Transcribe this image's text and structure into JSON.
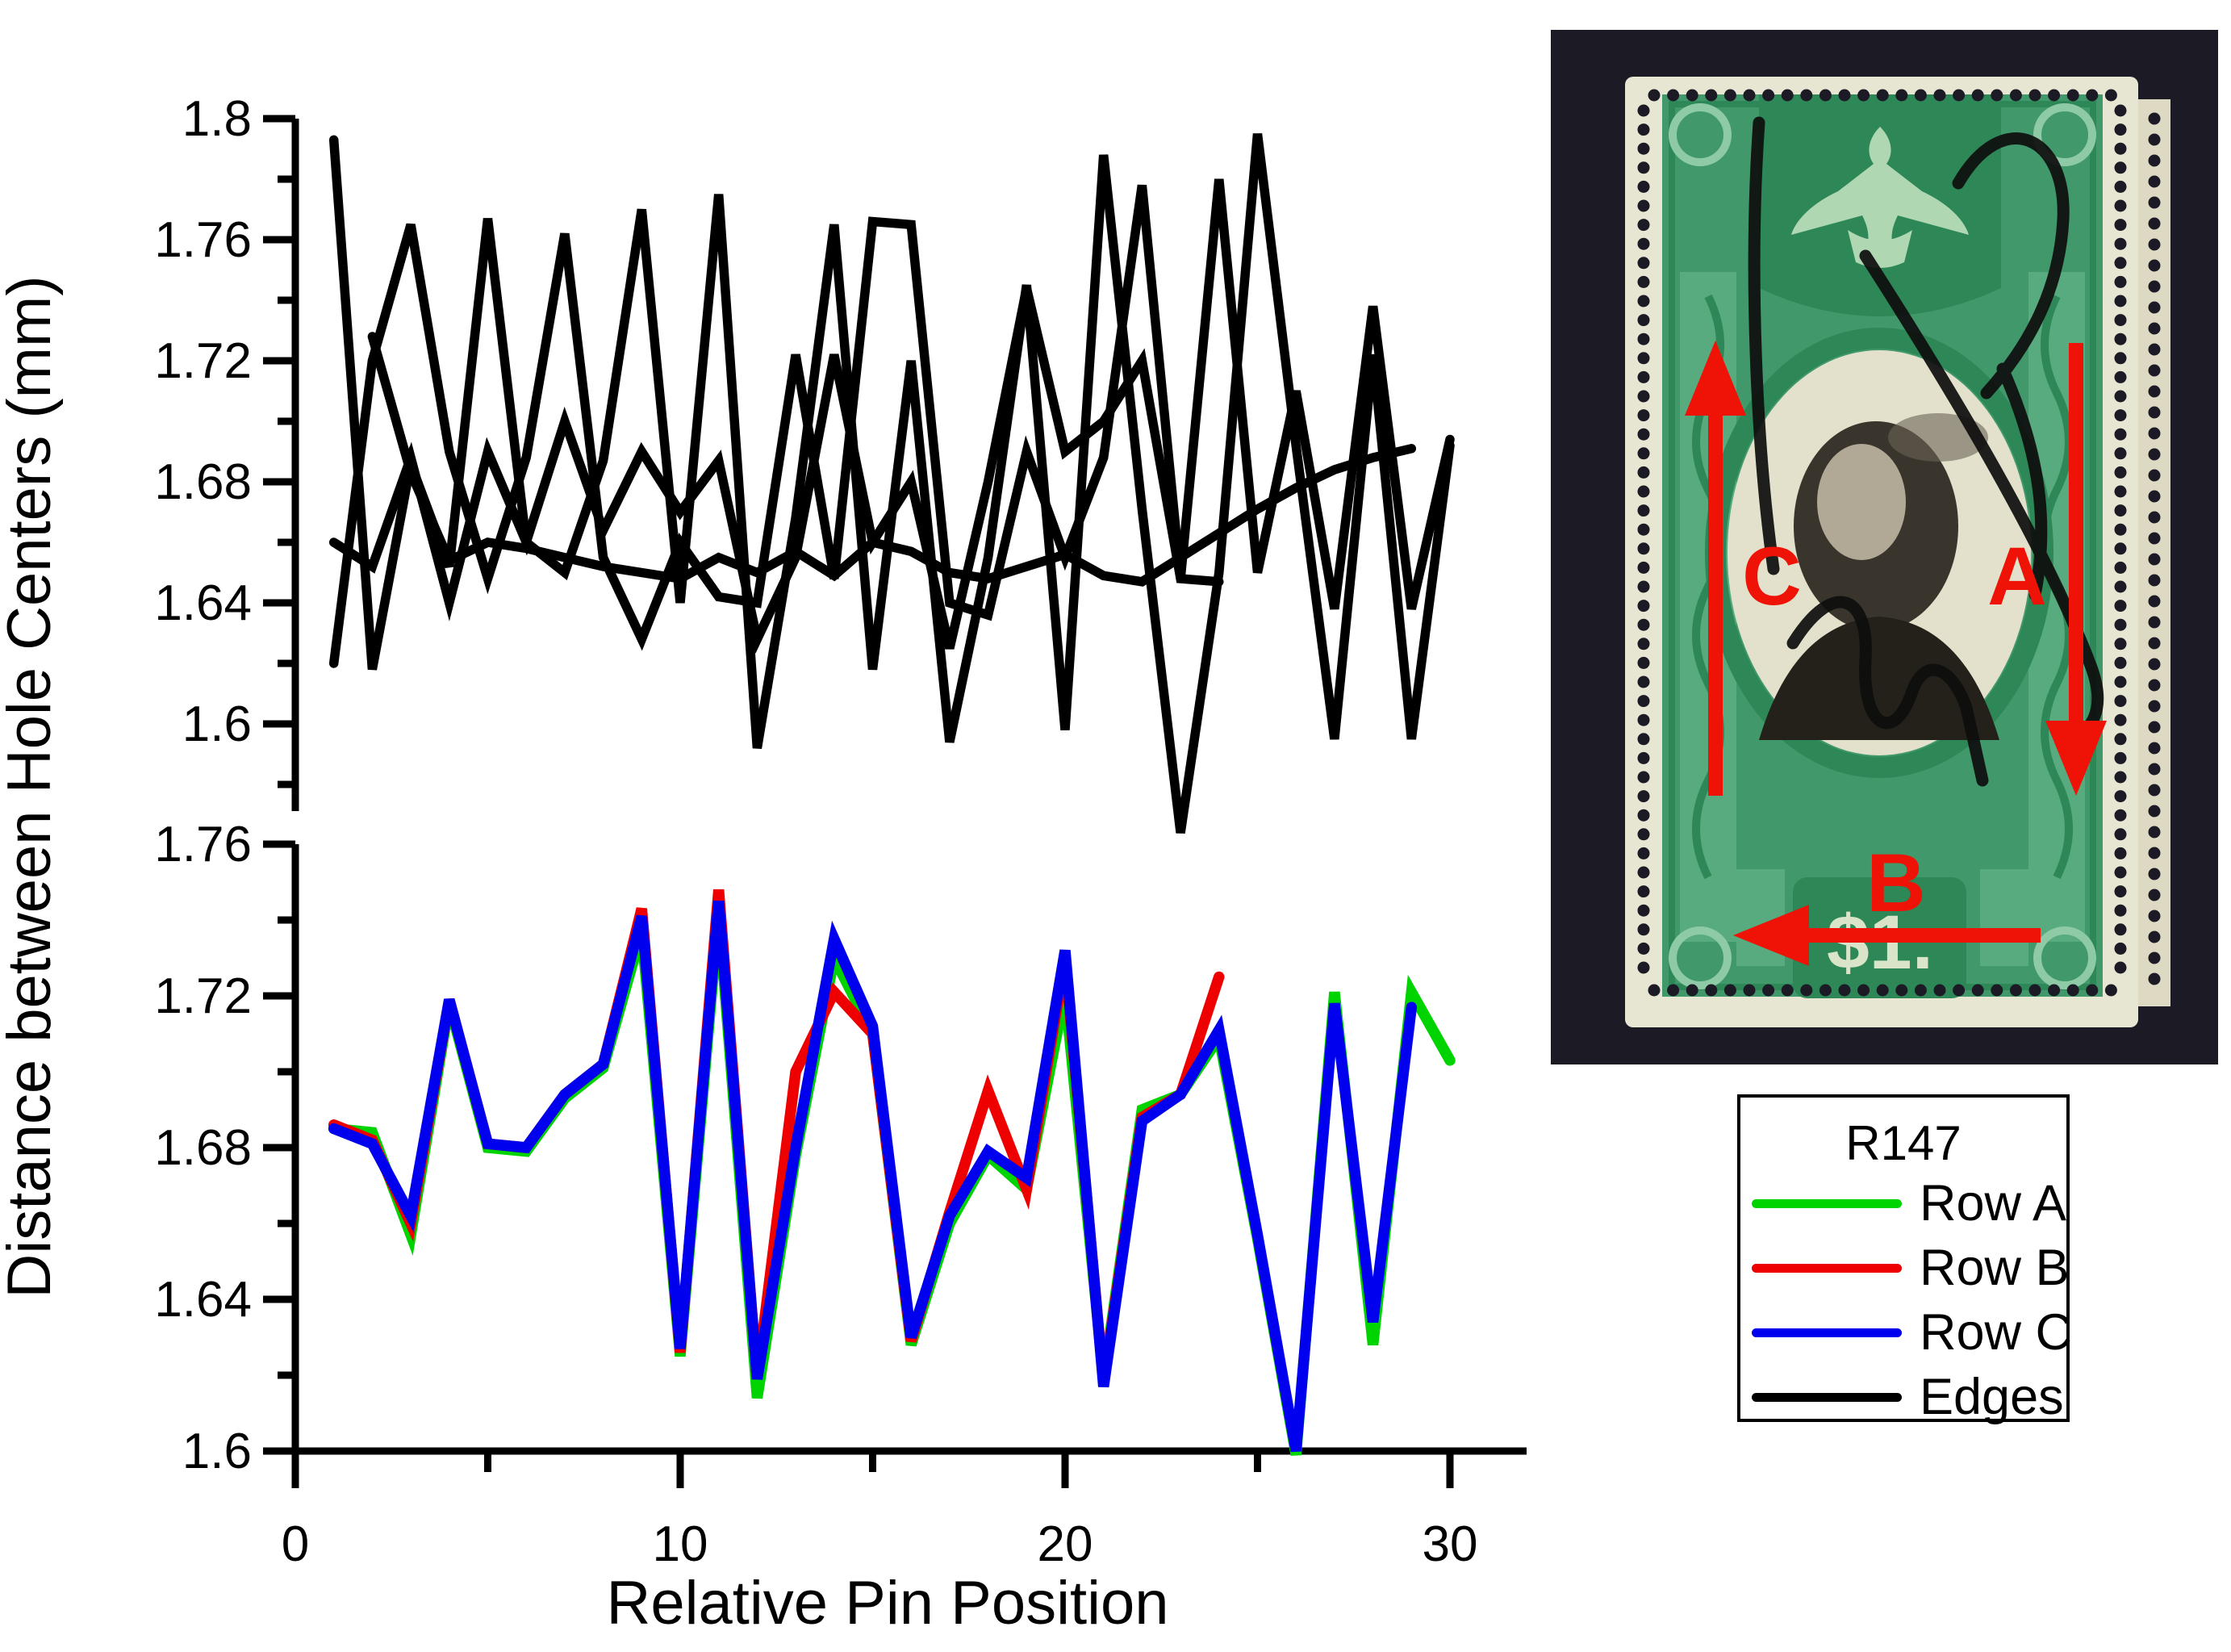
{
  "figure": {
    "ylabel": "Distance between Hole Centers (mm)",
    "xlabel": "Relative Pin Position"
  },
  "legend": {
    "title": "R147",
    "items": [
      {
        "label": "Row A",
        "color": "#00d400"
      },
      {
        "label": "Row B",
        "color": "#ee0000"
      },
      {
        "label": "Row C",
        "color": "#0000ee"
      },
      {
        "label": "Edges",
        "color": "#000000"
      }
    ]
  },
  "stamp": {
    "arrow_a_label": "A",
    "arrow_b_label": "B",
    "arrow_c_label": "C",
    "denomination": "$1.",
    "arrow_color": "#ef1207",
    "paper_color": "#e7e6d2",
    "green_color": "#41996b",
    "background_color": "#1b1a25"
  },
  "chart_data": [
    {
      "type": "line",
      "title": "",
      "xlabel": "Relative Pin Position",
      "ylabel": "Distance between Hole Centers (mm)",
      "xlim": [
        0,
        31.5
      ],
      "ylim": [
        1.57,
        1.81
      ],
      "grid": false,
      "x_ticks_major": [
        0,
        10,
        20,
        30
      ],
      "x_ticks_minor": [
        5,
        15,
        25
      ],
      "y_ticks_major": [
        "1.8",
        "1.76",
        "1.72",
        "1.68",
        "1.64",
        "1.6"
      ],
      "y_ticks_minor": [
        1.78,
        1.74,
        1.7,
        1.66,
        1.62,
        1.58
      ],
      "legend_entry": "Edges",
      "series": [
        {
          "name": "edge-1",
          "x_start": 1,
          "values": [
            1.793,
            1.618,
            1.686,
            1.652,
            1.767,
            1.66,
            1.65,
            1.687,
            1.77,
            1.64,
            1.775,
            1.592,
            1.668,
            1.765,
            1.618,
            1.72,
            1.594,
            1.655,
            1.745,
            1.598,
            1.788,
            1.671,
            1.564,
            1.65,
            1.795,
            1.692,
            1.595,
            1.722,
            1.595,
            1.692
          ]
        },
        {
          "name": "edge-2",
          "x_start": 1,
          "values": [
            1.62,
            1.72,
            1.765,
            1.69,
            1.648,
            1.688,
            1.762,
            1.655,
            1.628,
            1.66,
            1.642,
            1.64,
            1.722,
            1.648,
            1.766,
            1.765,
            1.64,
            1.636,
            1.69,
            1.655,
            1.688,
            1.778,
            1.648,
            1.78,
            1.65,
            1.71,
            1.638,
            1.738,
            1.638,
            1.694
          ]
        },
        {
          "name": "edge-3",
          "x_start": 2,
          "values": [
            1.728,
            1.683,
            1.654,
            1.66,
            1.658,
            1.655,
            1.652,
            1.65,
            1.648,
            1.655,
            1.65,
            1.657,
            1.649,
            1.66,
            1.657,
            1.65,
            1.648,
            1.652,
            1.656,
            1.649,
            1.647,
            1.655,
            1.663,
            1.671,
            1.678,
            1.684,
            1.688,
            1.691
          ]
        },
        {
          "name": "edge-4",
          "x_start": 1,
          "values": [
            1.66,
            1.652,
            1.688,
            1.64,
            1.69,
            1.66,
            1.7,
            1.664,
            1.69,
            1.67,
            1.687,
            1.628,
            1.655,
            1.722,
            1.66,
            1.68,
            1.625,
            1.68,
            1.744,
            1.69,
            1.7,
            1.72,
            1.648,
            1.647
          ]
        }
      ]
    },
    {
      "type": "line",
      "title": "",
      "xlabel": "Relative Pin Position",
      "ylabel": "Distance between Hole Centers (mm)",
      "xlim": [
        0,
        31.5
      ],
      "ylim": [
        1.6,
        1.76
      ],
      "grid": false,
      "x_ticks_major": [
        0,
        10,
        20,
        30
      ],
      "x_ticks_minor": [
        5,
        15,
        25
      ],
      "y_ticks_major": [
        "1.76",
        "1.72",
        "1.68",
        "1.64",
        "1.6"
      ],
      "y_ticks_minor": [
        1.74,
        1.7,
        1.66,
        1.62
      ],
      "series": [
        {
          "name": "Row A",
          "color": "#00d400",
          "x_start": 1,
          "values": [
            1.685,
            1.684,
            1.657,
            1.718,
            1.68,
            1.679,
            1.693,
            1.701,
            1.737,
            1.625,
            1.742,
            1.614,
            1.678,
            1.73,
            1.71,
            1.628,
            1.66,
            1.678,
            1.669,
            1.721,
            1.619,
            1.69,
            1.694,
            1.709,
            1.656,
            1.599,
            1.721,
            1.628,
            1.721,
            1.703
          ]
        },
        {
          "name": "Row B",
          "color": "#ee0000",
          "x_start": 1,
          "values": [
            1.686,
            1.682,
            1.66,
            1.719,
            1.681,
            1.68,
            1.694,
            1.702,
            1.743,
            1.626,
            1.748,
            1.619,
            1.7,
            1.721,
            1.71,
            1.629,
            1.663,
            1.695,
            1.669,
            1.73,
            1.618,
            1.688,
            1.694,
            1.725
          ]
        },
        {
          "name": "Row C",
          "color": "#0000ee",
          "x_start": 1,
          "values": [
            1.685,
            1.681,
            1.662,
            1.719,
            1.681,
            1.68,
            1.694,
            1.702,
            1.741,
            1.627,
            1.745,
            1.619,
            1.68,
            1.735,
            1.712,
            1.63,
            1.662,
            1.679,
            1.672,
            1.732,
            1.617,
            1.687,
            1.694,
            1.711,
            1.657,
            1.6,
            1.718,
            1.634,
            1.717
          ]
        }
      ]
    }
  ]
}
